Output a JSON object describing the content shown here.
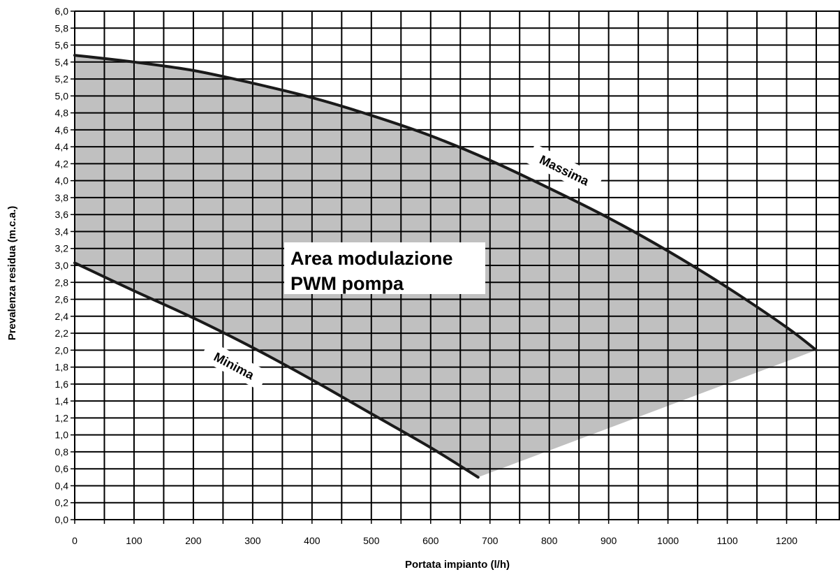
{
  "chart_data": {
    "type": "area",
    "xlabel": "Portata impianto (l/h)",
    "ylabel": "Prevalenza residua (m.c.a.)",
    "xlim": [
      0,
      1290
    ],
    "ylim": [
      0,
      6.0
    ],
    "x_ticks": [
      0,
      100,
      200,
      300,
      400,
      500,
      600,
      700,
      800,
      900,
      1000,
      1100,
      1200
    ],
    "x_tick_labels": [
      "0",
      "100",
      "200",
      "300",
      "400",
      "500",
      "600",
      "700",
      "800",
      "900",
      "1000",
      "1100",
      "1200"
    ],
    "y_ticks": [
      0,
      0.2,
      0.4,
      0.6,
      0.8,
      1.0,
      1.2,
      1.4,
      1.6,
      1.8,
      2.0,
      2.2,
      2.4,
      2.6,
      2.8,
      3.0,
      3.2,
      3.4,
      3.6,
      3.8,
      4.0,
      4.2,
      4.4,
      4.6,
      4.8,
      5.0,
      5.2,
      5.4,
      5.6,
      5.8,
      6.0
    ],
    "y_tick_labels": [
      "0,0",
      "0,2",
      "0,4",
      "0,6",
      "0,8",
      "1,0",
      "1,2",
      "1,4",
      "1,6",
      "1,8",
      "2,0",
      "2,2",
      "2,4",
      "2,6",
      "2,8",
      "3,0",
      "3,2",
      "3,4",
      "3,6",
      "3,8",
      "4,0",
      "4,2",
      "4,4",
      "4,6",
      "4,8",
      "5,0",
      "5,2",
      "5,4",
      "5,6",
      "5,8",
      "6,0"
    ],
    "grid": true,
    "series": [
      {
        "name": "Massima",
        "x": [
          0,
          100,
          200,
          300,
          400,
          500,
          600,
          700,
          800,
          900,
          1000,
          1100,
          1200,
          1250
        ],
        "y": [
          5.48,
          5.4,
          5.3,
          5.15,
          4.98,
          4.77,
          4.53,
          4.24,
          3.91,
          3.56,
          3.17,
          2.74,
          2.27,
          2.0
        ]
      },
      {
        "name": "Minima",
        "x": [
          0,
          100,
          200,
          300,
          400,
          500,
          600,
          680
        ],
        "y": [
          3.03,
          2.7,
          2.38,
          2.03,
          1.65,
          1.25,
          0.85,
          0.5
        ]
      }
    ],
    "area": {
      "boundary_x": [
        680,
        1250
      ],
      "boundary_y": [
        0.5,
        2.0
      ]
    },
    "annotations": {
      "area_label_line1": "Area modulazione",
      "area_label_line2": "PWM pompa"
    },
    "colors": {
      "area_fill": "#c0c0c0",
      "curve": "#1a1a1a",
      "grid": "#000000"
    }
  }
}
